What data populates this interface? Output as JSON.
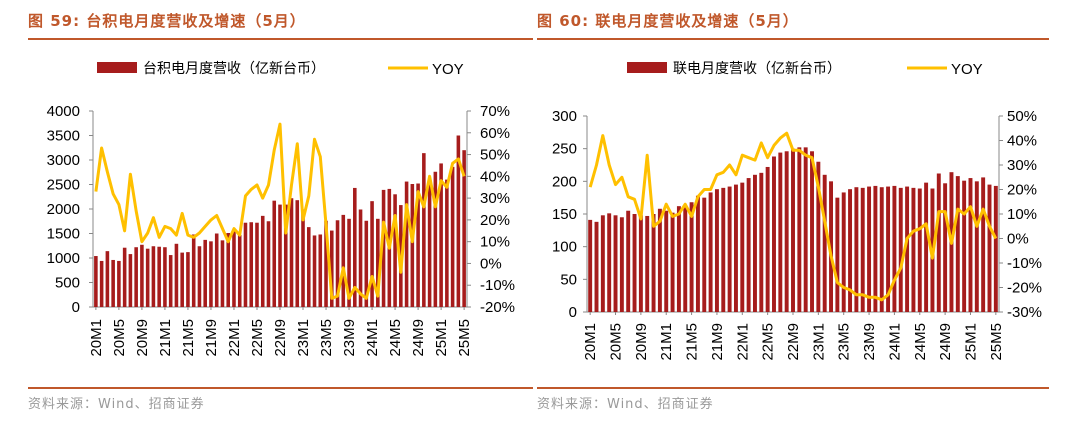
{
  "panels": [
    {
      "fig_title": "图 59:  台积电月度营收及增速（5月）",
      "source": "资料来源：Wind、招商证券"
    },
    {
      "fig_title": "图 60:  联电月度营收及增速（5月）",
      "source": "资料来源：Wind、招商证券"
    }
  ],
  "colors": {
    "bar": "#a61c1c",
    "line": "#ffc000",
    "accent": "#c0582b",
    "source": "#999999"
  },
  "chart_data": [
    {
      "type": "bar+line",
      "legend": {
        "bar": "台积电月度营收（亿新台币）",
        "line": "YOY",
        "position": "top"
      },
      "x_tick_labels": [
        "20M1",
        "20M5",
        "20M9",
        "21M1",
        "21M5",
        "21M9",
        "22M1",
        "22M5",
        "22M9",
        "23M1",
        "23M5",
        "23M9",
        "24M1",
        "24M5",
        "24M9",
        "25M1",
        "25M5"
      ],
      "ylim_left": [
        0,
        4000
      ],
      "yticks_left": [
        "0",
        "500",
        "1000",
        "1500",
        "2000",
        "2500",
        "3000",
        "3500",
        "4000"
      ],
      "ylim_right": [
        -20,
        70
      ],
      "yticks_right": [
        "-20%",
        "-10%",
        "0%",
        "10%",
        "20%",
        "30%",
        "40%",
        "50%",
        "60%",
        "70%"
      ],
      "series": [
        {
          "name": "台积电月度营收（亿新台币）",
          "kind": "bar",
          "values": [
            1040,
            940,
            1140,
            960,
            940,
            1210,
            1080,
            1220,
            1270,
            1190,
            1240,
            1230,
            1220,
            1060,
            1290,
            1110,
            1120,
            1480,
            1240,
            1370,
            1340,
            1500,
            1360,
            1510,
            1560,
            1470,
            1720,
            1730,
            1720,
            1860,
            1750,
            2170,
            2090,
            2090,
            2220,
            2180,
            1990,
            1630,
            1460,
            1480,
            1760,
            1560,
            1770,
            1880,
            1800,
            2430,
            1990,
            1760,
            2160,
            1800,
            2390,
            2410,
            2300,
            2080,
            2560,
            2510,
            2520,
            3140,
            2510,
            2760,
            2930,
            2600,
            2860,
            3500,
            3200
          ]
        },
        {
          "name": "YOY",
          "kind": "line",
          "values": [
            33,
            53,
            42,
            32,
            27,
            15,
            41,
            24,
            10,
            14,
            21,
            12,
            17,
            16,
            13,
            23,
            13,
            12,
            14,
            17,
            20,
            22,
            16,
            10,
            16,
            13,
            31,
            34,
            36,
            30,
            36,
            52,
            64,
            14,
            36,
            55,
            20,
            31,
            57,
            49,
            18,
            -16,
            -15,
            -2,
            -16,
            -11,
            -14,
            -16,
            -6,
            -15,
            19,
            7,
            22,
            -4,
            27,
            10,
            33,
            26,
            40,
            26,
            38,
            35,
            46,
            48,
            40
          ]
        }
      ]
    },
    {
      "type": "bar+line",
      "legend": {
        "bar": "联电月度营收（亿新台币）",
        "line": "YOY",
        "position": "top"
      },
      "x_tick_labels": [
        "20M1",
        "20M5",
        "20M9",
        "21M1",
        "21M5",
        "21M9",
        "22M1",
        "22M5",
        "22M9",
        "23M1",
        "23M5",
        "23M9",
        "24M1",
        "24M5",
        "24M9",
        "25M1",
        "25M5"
      ],
      "ylim_left": [
        0,
        300
      ],
      "yticks_left": [
        "0",
        "50",
        "100",
        "150",
        "200",
        "250",
        "300"
      ],
      "ylim_right": [
        -30,
        50
      ],
      "yticks_right": [
        "-30%",
        "-20%",
        "-10%",
        "0%",
        "10%",
        "20%",
        "30%",
        "40%",
        "50%"
      ],
      "series": [
        {
          "name": "联电月度营收（亿新台币）",
          "kind": "bar",
          "values": [
            141,
            138,
            148,
            151,
            148,
            145,
            155,
            150,
            148,
            147,
            150,
            158,
            155,
            152,
            162,
            160,
            168,
            178,
            175,
            183,
            188,
            190,
            192,
            195,
            198,
            205,
            210,
            213,
            222,
            238,
            244,
            246,
            250,
            252,
            252,
            246,
            230,
            210,
            200,
            175,
            183,
            188,
            191,
            190,
            192,
            193,
            191,
            192,
            193,
            190,
            192,
            190,
            189,
            198,
            189,
            212,
            197,
            214,
            208,
            201,
            205,
            200,
            206,
            195,
            193
          ]
        },
        {
          "name": "YOY",
          "kind": "line",
          "values": [
            21,
            30,
            42,
            30,
            22,
            25,
            17,
            16,
            8,
            34,
            5,
            7,
            14,
            9,
            10,
            14,
            9,
            17,
            20,
            20,
            26,
            27,
            30,
            26,
            34,
            33,
            32,
            39,
            33,
            38,
            41,
            43,
            36,
            36,
            34,
            33,
            21,
            7,
            -7,
            -18,
            -20,
            -21,
            -23,
            -23,
            -24,
            -24,
            -25,
            -23,
            -17,
            -12,
            0,
            3,
            4,
            6,
            -8,
            11,
            11,
            -2,
            12,
            10,
            13,
            5,
            12,
            5,
            0
          ]
        }
      ]
    }
  ]
}
